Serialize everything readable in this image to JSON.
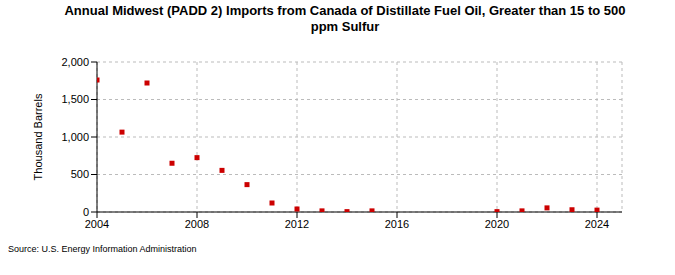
{
  "chart_data": {
    "type": "scatter",
    "title": "Annual Midwest (PADD 2) Imports from Canada of Distillate Fuel Oil, Greater than 15 to 500 ppm Sulfur",
    "y_label": "Thousand Barrels",
    "source": "Source: U.S. Energy Information Administration",
    "x": [
      2004,
      2005,
      2006,
      2007,
      2008,
      2009,
      2010,
      2011,
      2012,
      2013,
      2014,
      2015,
      2020,
      2021,
      2022,
      2023,
      2024
    ],
    "values": [
      1760,
      1065,
      1720,
      650,
      725,
      555,
      365,
      120,
      40,
      15,
      5,
      15,
      5,
      15,
      55,
      30,
      25
    ],
    "color": "#cc0000",
    "marker": "square",
    "xlim": [
      2004,
      2025
    ],
    "xticks": [
      2004,
      2008,
      2012,
      2016,
      2020,
      2024
    ],
    "ylim": [
      0,
      2000
    ],
    "yticks": [
      0,
      500,
      {
        "value": 1000,
        "label": "1,000"
      },
      {
        "value": 1500,
        "label": "1,500"
      },
      {
        "value": 2000,
        "label": "2,000"
      }
    ],
    "grid": true
  }
}
